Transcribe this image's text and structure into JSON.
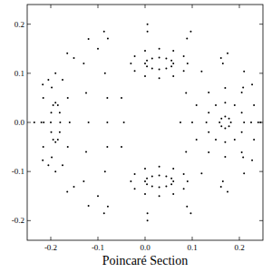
{
  "chart_data": {
    "type": "scatter",
    "xlabel": "Poincaré Section",
    "color": "#000000",
    "marker": "dot",
    "xlim": [
      -0.25,
      0.25
    ],
    "ylim": [
      -0.24,
      0.24
    ],
    "xticks": [
      -0.2,
      -0.1,
      {
        "value": 0,
        "label": "0.0"
      },
      0.1,
      0.2
    ],
    "yticks": [
      -0.2,
      -0.1,
      {
        "value": 0,
        "label": "0.0"
      },
      0.1,
      0.2
    ],
    "x": [
      0.182,
      0.178,
      0.17,
      0.162,
      0.158,
      0.162,
      0.17,
      0.178,
      0.21,
      0.205,
      0.19,
      0.17,
      0.15,
      0.135,
      0.13,
      0.135,
      0.15,
      0.17,
      0.19,
      0.205,
      0.24,
      0.231,
      0.205,
      0.17,
      0.135,
      0.109,
      0.1,
      0.109,
      0.135,
      0.17,
      0.205,
      0.231,
      0.165,
      0.12,
      0.087,
      0.075,
      0.087,
      0.12,
      0.165,
      0.21,
      0.21,
      0.245,
      0.227,
      0.175,
      0.097,
      0.005,
      -0.087,
      -0.165,
      -0.217,
      -0.235,
      -0.217,
      -0.165,
      -0.087,
      0.005,
      0.097,
      0.175,
      0.227,
      0.225,
      0.208,
      0.161,
      0.089,
      0.005,
      -0.079,
      -0.151,
      -0.198,
      -0.215,
      -0.198,
      -0.151,
      -0.079,
      0.005,
      0.089,
      0.161,
      0.208,
      -0.18,
      -0.181,
      -0.185,
      -0.19,
      -0.195,
      -0.199,
      -0.2,
      -0.199,
      -0.195,
      -0.19,
      -0.185,
      -0.181,
      -0.16,
      -0.164,
      -0.175,
      -0.19,
      -0.205,
      -0.216,
      -0.22,
      -0.216,
      -0.205,
      -0.19,
      -0.175,
      -0.164,
      0.06,
      0.056,
      0.045,
      0.03,
      0.015,
      0.004,
      0,
      0.004,
      0.015,
      0.03,
      0.045,
      0.056,
      0.09,
      0.082,
      0.06,
      0.03,
      0,
      -0.022,
      -0.03,
      -0.022,
      0,
      0.03,
      0.06,
      0.082,
      0.06,
      0.056,
      0.045,
      0.03,
      0.015,
      0.004,
      0,
      0.004,
      0.015,
      0.03,
      0.045,
      0.056,
      0.09,
      0.082,
      0.06,
      0.03,
      0,
      -0.022,
      -0.03,
      -0.022,
      0,
      0.03,
      0.06,
      0.082,
      -0.12,
      -0.1,
      -0.085,
      -0.08,
      -0.08,
      -0.08,
      -0.085,
      -0.1,
      -0.12,
      -0.05,
      -0.045,
      -0.05,
      -0.13,
      -0.125,
      -0.12,
      -0.125,
      -0.13
    ],
    "values": [
      0,
      0.008,
      0.012,
      0.008,
      0,
      -0.008,
      -0.012,
      -0.008,
      0,
      0.02,
      0.035,
      0.04,
      0.035,
      0.02,
      0,
      -0.02,
      -0.035,
      -0.04,
      -0.035,
      -0.02,
      0,
      0.035,
      0.061,
      0.07,
      0.061,
      0.035,
      0,
      -0.035,
      -0.061,
      -0.07,
      -0.061,
      -0.035,
      0.12,
      0.104,
      0.06,
      0,
      -0.06,
      -0.104,
      -0.12,
      -0.104,
      0.104,
      0,
      0.077,
      0.141,
      0.185,
      0.2,
      0.185,
      0.141,
      0.077,
      0,
      -0.077,
      -0.141,
      -0.185,
      -0.2,
      -0.185,
      -0.141,
      -0.077,
      0,
      0.071,
      0.131,
      0.171,
      0.185,
      0.171,
      0.131,
      0.071,
      0,
      -0.071,
      -0.131,
      -0.171,
      -0.185,
      -0.171,
      -0.131,
      -0.071,
      0,
      0.02,
      0.035,
      0.04,
      0.035,
      0.02,
      0,
      -0.02,
      -0.035,
      -0.04,
      -0.035,
      -0.02,
      0,
      0.05,
      0.087,
      0.1,
      0.087,
      0.05,
      0,
      -0.05,
      -0.087,
      -0.1,
      -0.087,
      -0.05,
      0.12,
      0.126,
      0.13,
      0.132,
      0.13,
      0.126,
      0.12,
      0.114,
      0.11,
      0.108,
      0.11,
      0.114,
      0.12,
      0.135,
      0.146,
      0.15,
      0.146,
      0.135,
      0.12,
      0.105,
      0.094,
      0.09,
      0.094,
      0.105,
      -0.12,
      -0.126,
      -0.13,
      -0.132,
      -0.13,
      -0.126,
      -0.12,
      -0.114,
      -0.11,
      -0.108,
      -0.11,
      -0.114,
      -0.12,
      -0.135,
      -0.146,
      -0.15,
      -0.146,
      -0.135,
      -0.12,
      -0.105,
      -0.094,
      -0.09,
      -0.094,
      -0.105,
      0.17,
      0.15,
      0.1,
      0.05,
      0,
      -0.05,
      -0.1,
      -0.15,
      -0.17,
      0.05,
      0,
      -0.05,
      0.12,
      0.06,
      0,
      -0.06,
      -0.12
    ]
  }
}
